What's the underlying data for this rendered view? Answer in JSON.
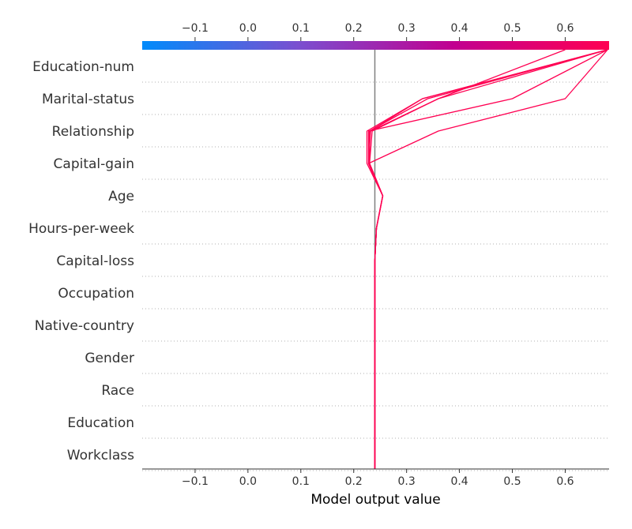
{
  "chart_data": {
    "type": "line",
    "subtype": "shap-decision-plot",
    "title": "",
    "xlabel": "Model output value",
    "ylabel": "",
    "xlim": [
      -0.2,
      0.683
    ],
    "x_ticks": [
      -0.1,
      0.0,
      0.1,
      0.2,
      0.3,
      0.4,
      0.5,
      0.6
    ],
    "x_tick_labels": [
      "−0.1",
      "0.0",
      "0.1",
      "0.2",
      "0.3",
      "0.4",
      "0.5",
      "0.6"
    ],
    "base_value": 0.24,
    "features": [
      "Education-num",
      "Marital-status",
      "Relationship",
      "Capital-gain",
      "Age",
      "Hours-per-week",
      "Capital-loss",
      "Occupation",
      "Native-country",
      "Gender",
      "Race",
      "Education",
      "Workclass"
    ],
    "colormap": [
      "#008bfb",
      "#7a4fd0",
      "#c10090",
      "#ff0052"
    ],
    "line_color": "#ff0052",
    "base_line_color": "#808080",
    "series": [
      {
        "values": [
          0.24,
          0.24,
          0.24,
          0.24,
          0.24,
          0.24,
          0.24,
          0.24,
          0.243,
          0.255,
          0.228,
          0.36,
          0.6,
          0.68
        ]
      },
      {
        "values": [
          0.24,
          0.24,
          0.24,
          0.24,
          0.24,
          0.24,
          0.24,
          0.24,
          0.243,
          0.255,
          0.225,
          0.225,
          0.33,
          0.68
        ]
      },
      {
        "values": [
          0.24,
          0.24,
          0.24,
          0.24,
          0.24,
          0.24,
          0.24,
          0.24,
          0.243,
          0.255,
          0.23,
          0.23,
          0.34,
          0.68
        ]
      },
      {
        "values": [
          0.24,
          0.24,
          0.24,
          0.24,
          0.24,
          0.24,
          0.24,
          0.24,
          0.243,
          0.255,
          0.228,
          0.228,
          0.5,
          0.68
        ]
      },
      {
        "values": [
          0.24,
          0.24,
          0.24,
          0.24,
          0.24,
          0.24,
          0.24,
          0.24,
          0.243,
          0.255,
          0.23,
          0.235,
          0.36,
          0.68
        ]
      },
      {
        "values": [
          0.24,
          0.24,
          0.24,
          0.24,
          0.24,
          0.24,
          0.24,
          0.24,
          0.243,
          0.255,
          0.23,
          0.23,
          0.33,
          0.68
        ]
      },
      {
        "values": [
          0.24,
          0.24,
          0.24,
          0.24,
          0.24,
          0.24,
          0.24,
          0.24,
          0.243,
          0.255,
          0.228,
          0.232,
          0.36,
          0.6
        ]
      }
    ]
  }
}
